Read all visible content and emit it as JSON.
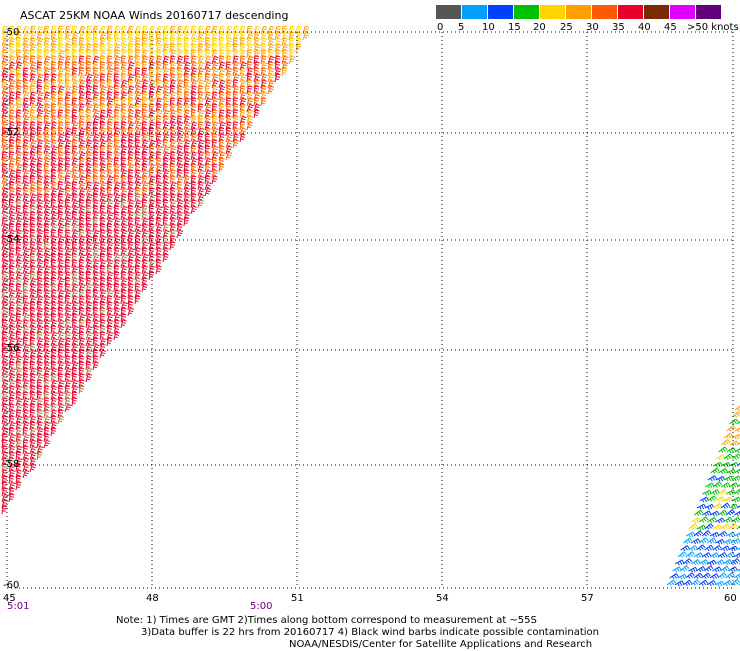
{
  "title": "ASCAT 25KM NOAA Winds 20160717 descending",
  "legend": {
    "labels": [
      "0",
      "5",
      "10",
      "15",
      "20",
      "25",
      "30",
      "35",
      "40",
      "45",
      ">50 knots"
    ],
    "colors": [
      "#555555",
      "#00a0ff",
      "#0040ff",
      "#00c000",
      "#ffd400",
      "#ffa000",
      "#ff5a00",
      "#e8002a",
      "#7a2a00",
      "#e000ff",
      "#60007a"
    ]
  },
  "map": {
    "lon_labels": [
      "45",
      "48",
      "51",
      "54",
      "57",
      "60"
    ],
    "lat_labels": [
      "-50",
      "-52",
      "-54",
      "-56",
      "-58",
      "-60"
    ],
    "time_labels": [
      "5:01",
      "5:00"
    ]
  },
  "notes": {
    "line1": "Note: 1) Times are GMT 2)Times along bottom correspond to measurement at ~55S",
    "line2": "3)Data buffer is 22 hrs from 20160717 4) Black wind barbs indicate possible contamination",
    "line3": "NOAA/NESDIS/Center for Satellite Applications and Research"
  }
}
